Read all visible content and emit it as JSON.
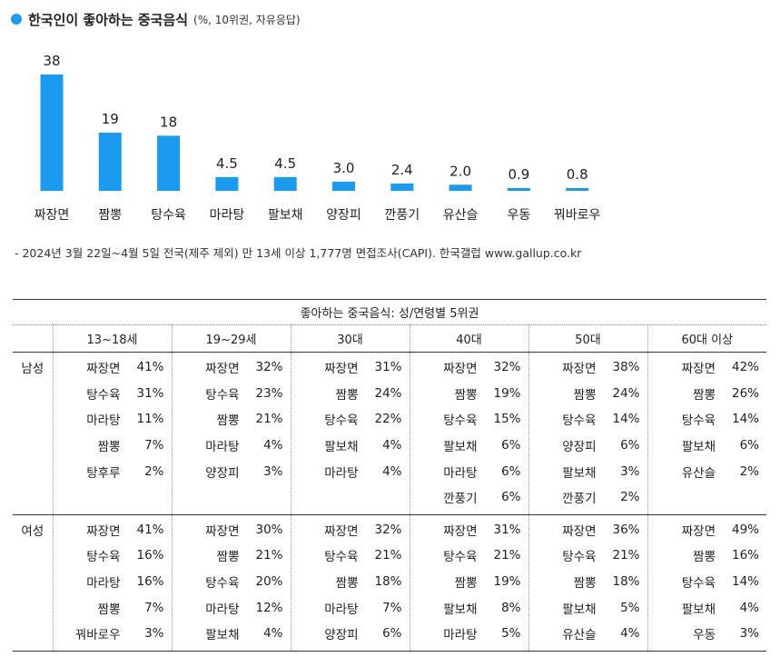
{
  "title": {
    "main": "한국인이 좋아하는 중국음식",
    "sub": "(%, 10위권, 자유응답)"
  },
  "colors": {
    "bar": "#1a9bf0",
    "bullet": "#1a9bf0"
  },
  "chart_data": {
    "type": "bar",
    "title": "한국인이 좋아하는 중국음식 (%, 10위권, 자유응답)",
    "categories": [
      "짜장면",
      "짬뽕",
      "탕수육",
      "마라탕",
      "팔보채",
      "양장피",
      "깐풍기",
      "유산슬",
      "우동",
      "꿔바로우"
    ],
    "values": [
      38,
      19,
      18,
      4.5,
      4.5,
      3.0,
      2.4,
      2.0,
      0.9,
      0.8
    ],
    "labels": [
      "38",
      "19",
      "18",
      "4.5",
      "4.5",
      "3.0",
      "2.4",
      "2.0",
      "0.9",
      "0.8"
    ],
    "xlabel": "",
    "ylabel": "%",
    "ylim": [
      0,
      38
    ]
  },
  "footnote": "- 2024년 3월 22일~4월 5일 전국(제주 제외) 만 13세 이상 1,777명 면접조사(CAPI). 한국갤럽 www.gallup.co.kr",
  "table": {
    "caption": "좋아하는 중국음식: 성/연령별 5위권",
    "groups": [
      "13~18세",
      "19~29세",
      "30대",
      "40대",
      "50대",
      "60대 이상"
    ],
    "rows": [
      {
        "gender": "남성",
        "cells": [
          [
            {
              "name": "짜장면",
              "pct": "41%"
            },
            {
              "name": "탕수육",
              "pct": "31%"
            },
            {
              "name": "마라탕",
              "pct": "11%"
            },
            {
              "name": "짬뽕",
              "pct": "7%"
            },
            {
              "name": "탕후루",
              "pct": "2%"
            }
          ],
          [
            {
              "name": "짜장면",
              "pct": "32%"
            },
            {
              "name": "탕수육",
              "pct": "23%"
            },
            {
              "name": "짬뽕",
              "pct": "21%"
            },
            {
              "name": "마라탕",
              "pct": "4%"
            },
            {
              "name": "양장피",
              "pct": "3%"
            }
          ],
          [
            {
              "name": "짜장면",
              "pct": "31%"
            },
            {
              "name": "짬뽕",
              "pct": "24%"
            },
            {
              "name": "탕수육",
              "pct": "22%"
            },
            {
              "name": "팔보채",
              "pct": "4%"
            },
            {
              "name": "마라탕",
              "pct": "4%"
            }
          ],
          [
            {
              "name": "짜장면",
              "pct": "32%"
            },
            {
              "name": "짬뽕",
              "pct": "19%"
            },
            {
              "name": "탕수육",
              "pct": "15%"
            },
            {
              "name": "팔보채",
              "pct": "6%"
            },
            {
              "name": "마라탕",
              "pct": "6%"
            },
            {
              "name": "깐풍기",
              "pct": "6%"
            }
          ],
          [
            {
              "name": "짜장면",
              "pct": "38%"
            },
            {
              "name": "짬뽕",
              "pct": "24%"
            },
            {
              "name": "탕수육",
              "pct": "14%"
            },
            {
              "name": "양장피",
              "pct": "6%"
            },
            {
              "name": "팔보채",
              "pct": "3%"
            },
            {
              "name": "깐풍기",
              "pct": "2%"
            }
          ],
          [
            {
              "name": "짜장면",
              "pct": "42%"
            },
            {
              "name": "짬뽕",
              "pct": "26%"
            },
            {
              "name": "탕수육",
              "pct": "14%"
            },
            {
              "name": "팔보채",
              "pct": "6%"
            },
            {
              "name": "유산슬",
              "pct": "2%"
            }
          ]
        ]
      },
      {
        "gender": "여성",
        "cells": [
          [
            {
              "name": "짜장면",
              "pct": "41%"
            },
            {
              "name": "탕수육",
              "pct": "16%"
            },
            {
              "name": "마라탕",
              "pct": "16%"
            },
            {
              "name": "짬뽕",
              "pct": "7%"
            },
            {
              "name": "꿔바로우",
              "pct": "3%"
            }
          ],
          [
            {
              "name": "짜장면",
              "pct": "30%"
            },
            {
              "name": "짬뽕",
              "pct": "21%"
            },
            {
              "name": "탕수육",
              "pct": "20%"
            },
            {
              "name": "마라탕",
              "pct": "12%"
            },
            {
              "name": "팔보채",
              "pct": "4%"
            }
          ],
          [
            {
              "name": "짜장면",
              "pct": "32%"
            },
            {
              "name": "탕수육",
              "pct": "21%"
            },
            {
              "name": "짬뽕",
              "pct": "18%"
            },
            {
              "name": "마라탕",
              "pct": "7%"
            },
            {
              "name": "양장피",
              "pct": "6%"
            }
          ],
          [
            {
              "name": "짜장면",
              "pct": "31%"
            },
            {
              "name": "탕수육",
              "pct": "21%"
            },
            {
              "name": "짬뽕",
              "pct": "19%"
            },
            {
              "name": "팔보채",
              "pct": "8%"
            },
            {
              "name": "마라탕",
              "pct": "5%"
            }
          ],
          [
            {
              "name": "짜장면",
              "pct": "36%"
            },
            {
              "name": "탕수육",
              "pct": "21%"
            },
            {
              "name": "짬뽕",
              "pct": "18%"
            },
            {
              "name": "팔보채",
              "pct": "5%"
            },
            {
              "name": "유산슬",
              "pct": "4%"
            }
          ],
          [
            {
              "name": "짜장면",
              "pct": "49%"
            },
            {
              "name": "짬뽕",
              "pct": "16%"
            },
            {
              "name": "탕수육",
              "pct": "14%"
            },
            {
              "name": "팔보채",
              "pct": "4%"
            },
            {
              "name": "우동",
              "pct": "3%"
            }
          ]
        ]
      }
    ]
  }
}
